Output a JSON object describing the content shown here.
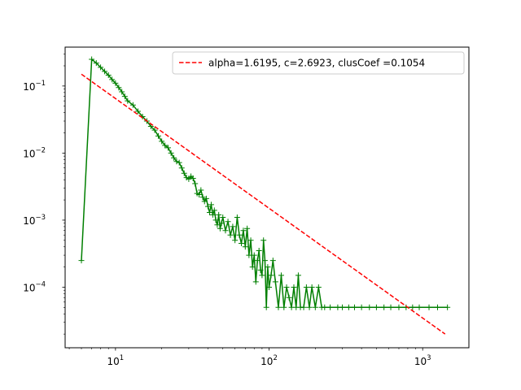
{
  "chart_data": {
    "type": "line",
    "xscale": "log",
    "yscale": "log",
    "xlim": [
      4.7,
      2000
    ],
    "ylim": [
      1.25e-05,
      0.38
    ],
    "xticks": [
      {
        "value": 10,
        "base": "10",
        "exp": "1"
      },
      {
        "value": 100,
        "base": "10",
        "exp": "2"
      },
      {
        "value": 1000,
        "base": "10",
        "exp": "3"
      }
    ],
    "yticks": [
      {
        "value": 0.0001,
        "base": "10",
        "exp": "−4"
      },
      {
        "value": 0.001,
        "base": "10",
        "exp": "−3"
      },
      {
        "value": 0.01,
        "base": "10",
        "exp": "−2"
      },
      {
        "value": 0.1,
        "base": "10",
        "exp": "−1"
      }
    ],
    "legend": {
      "position": "top-right",
      "entries": [
        {
          "label": "alpha=1.6195, c=2.6923, clusCoef =0.1054",
          "style": "dashed",
          "color": "#ff0000"
        }
      ]
    },
    "series": [
      {
        "style": "line-with-plus-markers",
        "color": "#007f00",
        "points": [
          [
            6,
            0.00025
          ],
          [
            7,
            0.25
          ],
          [
            7.5,
            0.22
          ],
          [
            8,
            0.19
          ],
          [
            8.5,
            0.165
          ],
          [
            9,
            0.145
          ],
          [
            9.5,
            0.125
          ],
          [
            10,
            0.11
          ],
          [
            10.5,
            0.095
          ],
          [
            11,
            0.082
          ],
          [
            11.5,
            0.07
          ],
          [
            12,
            0.06
          ],
          [
            13,
            0.052
          ],
          [
            14,
            0.042
          ],
          [
            15,
            0.035
          ],
          [
            16,
            0.03
          ],
          [
            17,
            0.025
          ],
          [
            18,
            0.022
          ],
          [
            19,
            0.018
          ],
          [
            20,
            0.015
          ],
          [
            21,
            0.013
          ],
          [
            22,
            0.012
          ],
          [
            23,
            0.01
          ],
          [
            24,
            0.0085
          ],
          [
            25,
            0.0075
          ],
          [
            26,
            0.0072
          ],
          [
            27,
            0.006
          ],
          [
            28,
            0.005
          ],
          [
            29,
            0.0043
          ],
          [
            30,
            0.0041
          ],
          [
            31,
            0.0045
          ],
          [
            32,
            0.0042
          ],
          [
            33,
            0.0035
          ],
          [
            34,
            0.0025
          ],
          [
            35,
            0.0024
          ],
          [
            36,
            0.0028
          ],
          [
            37,
            0.0022
          ],
          [
            38,
            0.0019
          ],
          [
            39,
            0.0021
          ],
          [
            40,
            0.0016
          ],
          [
            41,
            0.0013
          ],
          [
            42,
            0.0017
          ],
          [
            43,
            0.0012
          ],
          [
            44,
            0.0014
          ],
          [
            45,
            0.001
          ],
          [
            46,
            0.00085
          ],
          [
            47,
            0.0012
          ],
          [
            48,
            0.00075
          ],
          [
            49,
            0.0009
          ],
          [
            50,
            0.0011
          ],
          [
            52,
            0.0007
          ],
          [
            54,
            0.00095
          ],
          [
            56,
            0.0006
          ],
          [
            58,
            0.0008
          ],
          [
            60,
            0.0005
          ],
          [
            62,
            0.0011
          ],
          [
            64,
            0.0006
          ],
          [
            66,
            0.00045
          ],
          [
            68,
            0.0007
          ],
          [
            70,
            0.0004
          ],
          [
            72,
            0.00075
          ],
          [
            74,
            0.0003
          ],
          [
            76,
            0.0005
          ],
          [
            78,
            0.0002
          ],
          [
            80,
            0.0003
          ],
          [
            82,
            0.00012
          ],
          [
            84,
            0.00025
          ],
          [
            86,
            0.00035
          ],
          [
            88,
            0.00018
          ],
          [
            90,
            0.00015
          ],
          [
            92,
            0.0005
          ],
          [
            94,
            0.00025
          ],
          [
            96,
            5e-05
          ],
          [
            98,
            0.0002
          ],
          [
            100,
            0.0001
          ],
          [
            103,
            0.00015
          ],
          [
            106,
            0.00025
          ],
          [
            110,
            0.00012
          ],
          [
            115,
            5e-05
          ],
          [
            120,
            0.00015
          ],
          [
            125,
            5e-05
          ],
          [
            130,
            0.0001
          ],
          [
            135,
            7e-05
          ],
          [
            140,
            5e-05
          ],
          [
            145,
            0.0001
          ],
          [
            150,
            5e-05
          ],
          [
            155,
            0.00015
          ],
          [
            160,
            5e-05
          ],
          [
            168,
            5e-05
          ],
          [
            175,
            0.0001
          ],
          [
            183,
            5e-05
          ],
          [
            190,
            0.0001
          ],
          [
            200,
            5e-05
          ],
          [
            210,
            0.0001
          ],
          [
            220,
            5e-05
          ],
          [
            230,
            5e-05
          ],
          [
            250,
            5e-05
          ],
          [
            280,
            5e-05
          ],
          [
            300,
            5e-05
          ],
          [
            330,
            5e-05
          ],
          [
            360,
            5e-05
          ],
          [
            400,
            5e-05
          ],
          [
            450,
            5e-05
          ],
          [
            500,
            5e-05
          ],
          [
            560,
            5e-05
          ],
          [
            620,
            5e-05
          ],
          [
            700,
            5e-05
          ],
          [
            780,
            5e-05
          ],
          [
            860,
            5e-05
          ],
          [
            950,
            5e-05
          ],
          [
            1100,
            5e-05
          ],
          [
            1250,
            5e-05
          ],
          [
            1450,
            5e-05
          ]
        ]
      },
      {
        "style": "dashed",
        "color": "#ff0000",
        "points": [
          [
            6,
            0.15
          ],
          [
            1400,
            2e-05
          ]
        ]
      }
    ]
  }
}
